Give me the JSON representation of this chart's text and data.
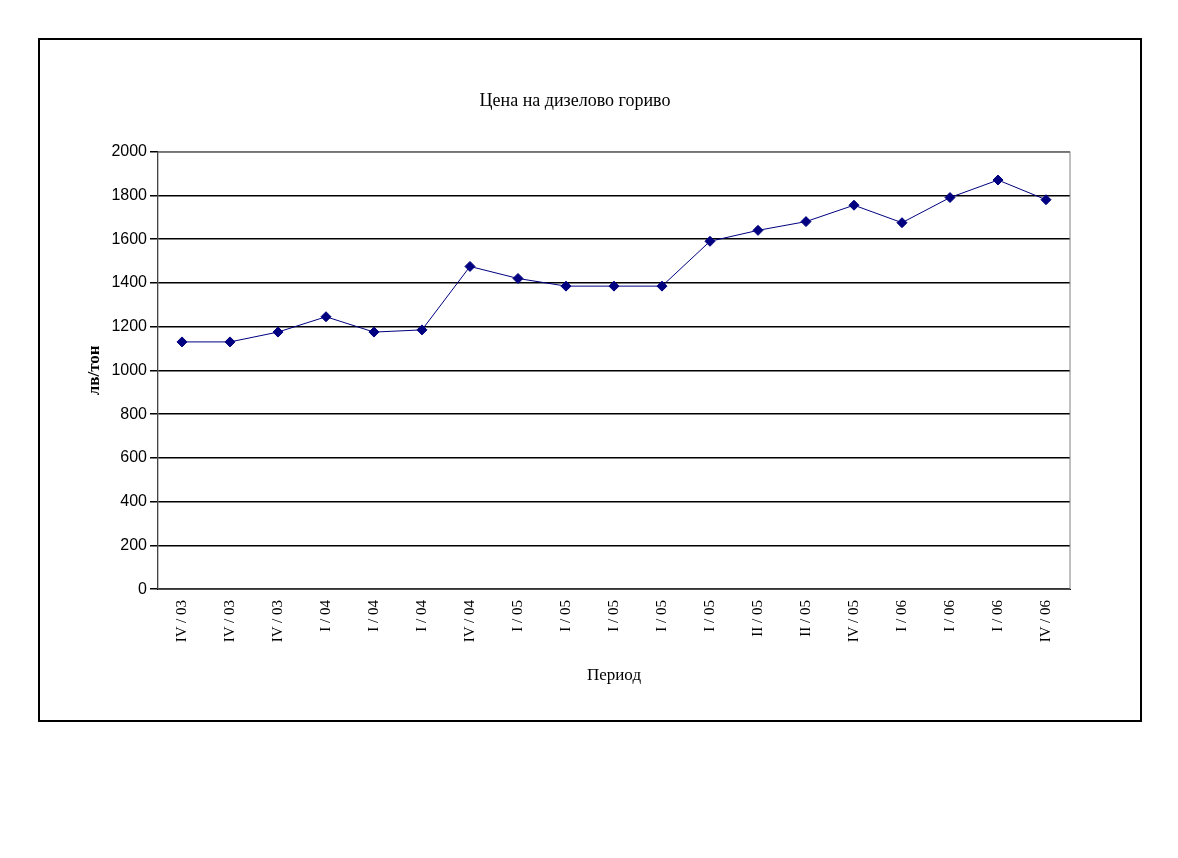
{
  "chart_data": {
    "type": "line",
    "title": "Цена на дизелово гориво",
    "xlabel": "Период",
    "ylabel": "лв/тон",
    "categories": [
      "IV / 03",
      "IV / 03",
      "IV / 03",
      "I / 04",
      "I / 04",
      "I / 04",
      "IV / 04",
      "I / 05",
      "I / 05",
      "I / 05",
      "I / 05",
      "I / 05",
      "II / 05",
      "II / 05",
      "IV / 05",
      "I / 06",
      "I / 06",
      "I / 06",
      "IV / 06"
    ],
    "series": [
      {
        "color": "#000080",
        "values": [
          1130,
          1130,
          1175,
          1245,
          1175,
          1185,
          1475,
          1420,
          1385,
          1385,
          1385,
          1590,
          1640,
          1680,
          1755,
          1675,
          1790,
          1870,
          1780
        ]
      }
    ],
    "ylim": [
      0,
      2000
    ],
    "yticks": [
      0,
      200,
      400,
      600,
      800,
      1000,
      1200,
      1400,
      1600,
      1800,
      2000
    ],
    "grid": "y",
    "legend": false,
    "marker": "diamond",
    "line_style": "solid"
  }
}
